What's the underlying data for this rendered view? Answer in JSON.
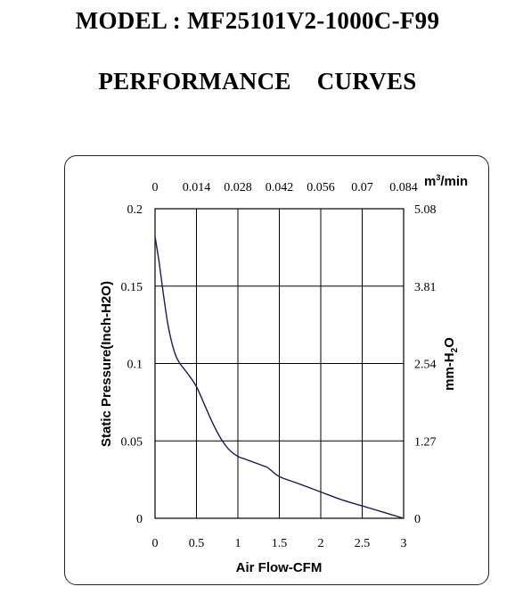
{
  "header": {
    "model": "MODEL : MF25101V2-1000C-F99",
    "subtitle": "PERFORMANCE CURVES"
  },
  "chart_data": {
    "type": "line",
    "xlabel": "Air Flow-CFM",
    "ylabel": "Static Pressure(Inch-H2O)",
    "x2label": {
      "base": "m",
      "sup": "3",
      "rest": "/min"
    },
    "y2label": {
      "base": "mm-H",
      "sub": "2",
      "rest": "O"
    },
    "xlim": [
      0,
      3
    ],
    "ylim": [
      0,
      0.2
    ],
    "x_ticks": [
      "0",
      "0.5",
      "1",
      "1.5",
      "2",
      "2.5",
      "3"
    ],
    "y_ticks": [
      "0",
      "0.05",
      "0.1",
      "0.15",
      "0.2"
    ],
    "x2_ticks": [
      "0",
      "0.014",
      "0.028",
      "0.042",
      "0.056",
      "0.07",
      "0.084"
    ],
    "y2_ticks": [
      "0",
      "1.27",
      "2.54",
      "3.81",
      "5.08"
    ],
    "grid": true,
    "line_color": "#1a1a5e",
    "series": [
      {
        "x": [
          0,
          0.05,
          0.1,
          0.15,
          0.2,
          0.25,
          0.3,
          0.4,
          0.5,
          0.6,
          0.7,
          0.8,
          0.9,
          1.0,
          1.1,
          1.2,
          1.3,
          1.35,
          1.4,
          1.5,
          1.75,
          2.0,
          2.25,
          2.5,
          2.75,
          3.0
        ],
        "y": [
          0.182,
          0.165,
          0.145,
          0.127,
          0.114,
          0.105,
          0.1,
          0.093,
          0.085,
          0.073,
          0.061,
          0.051,
          0.044,
          0.04,
          0.038,
          0.036,
          0.034,
          0.033,
          0.031,
          0.027,
          0.022,
          0.017,
          0.012,
          0.008,
          0.004,
          0.0
        ]
      }
    ]
  }
}
